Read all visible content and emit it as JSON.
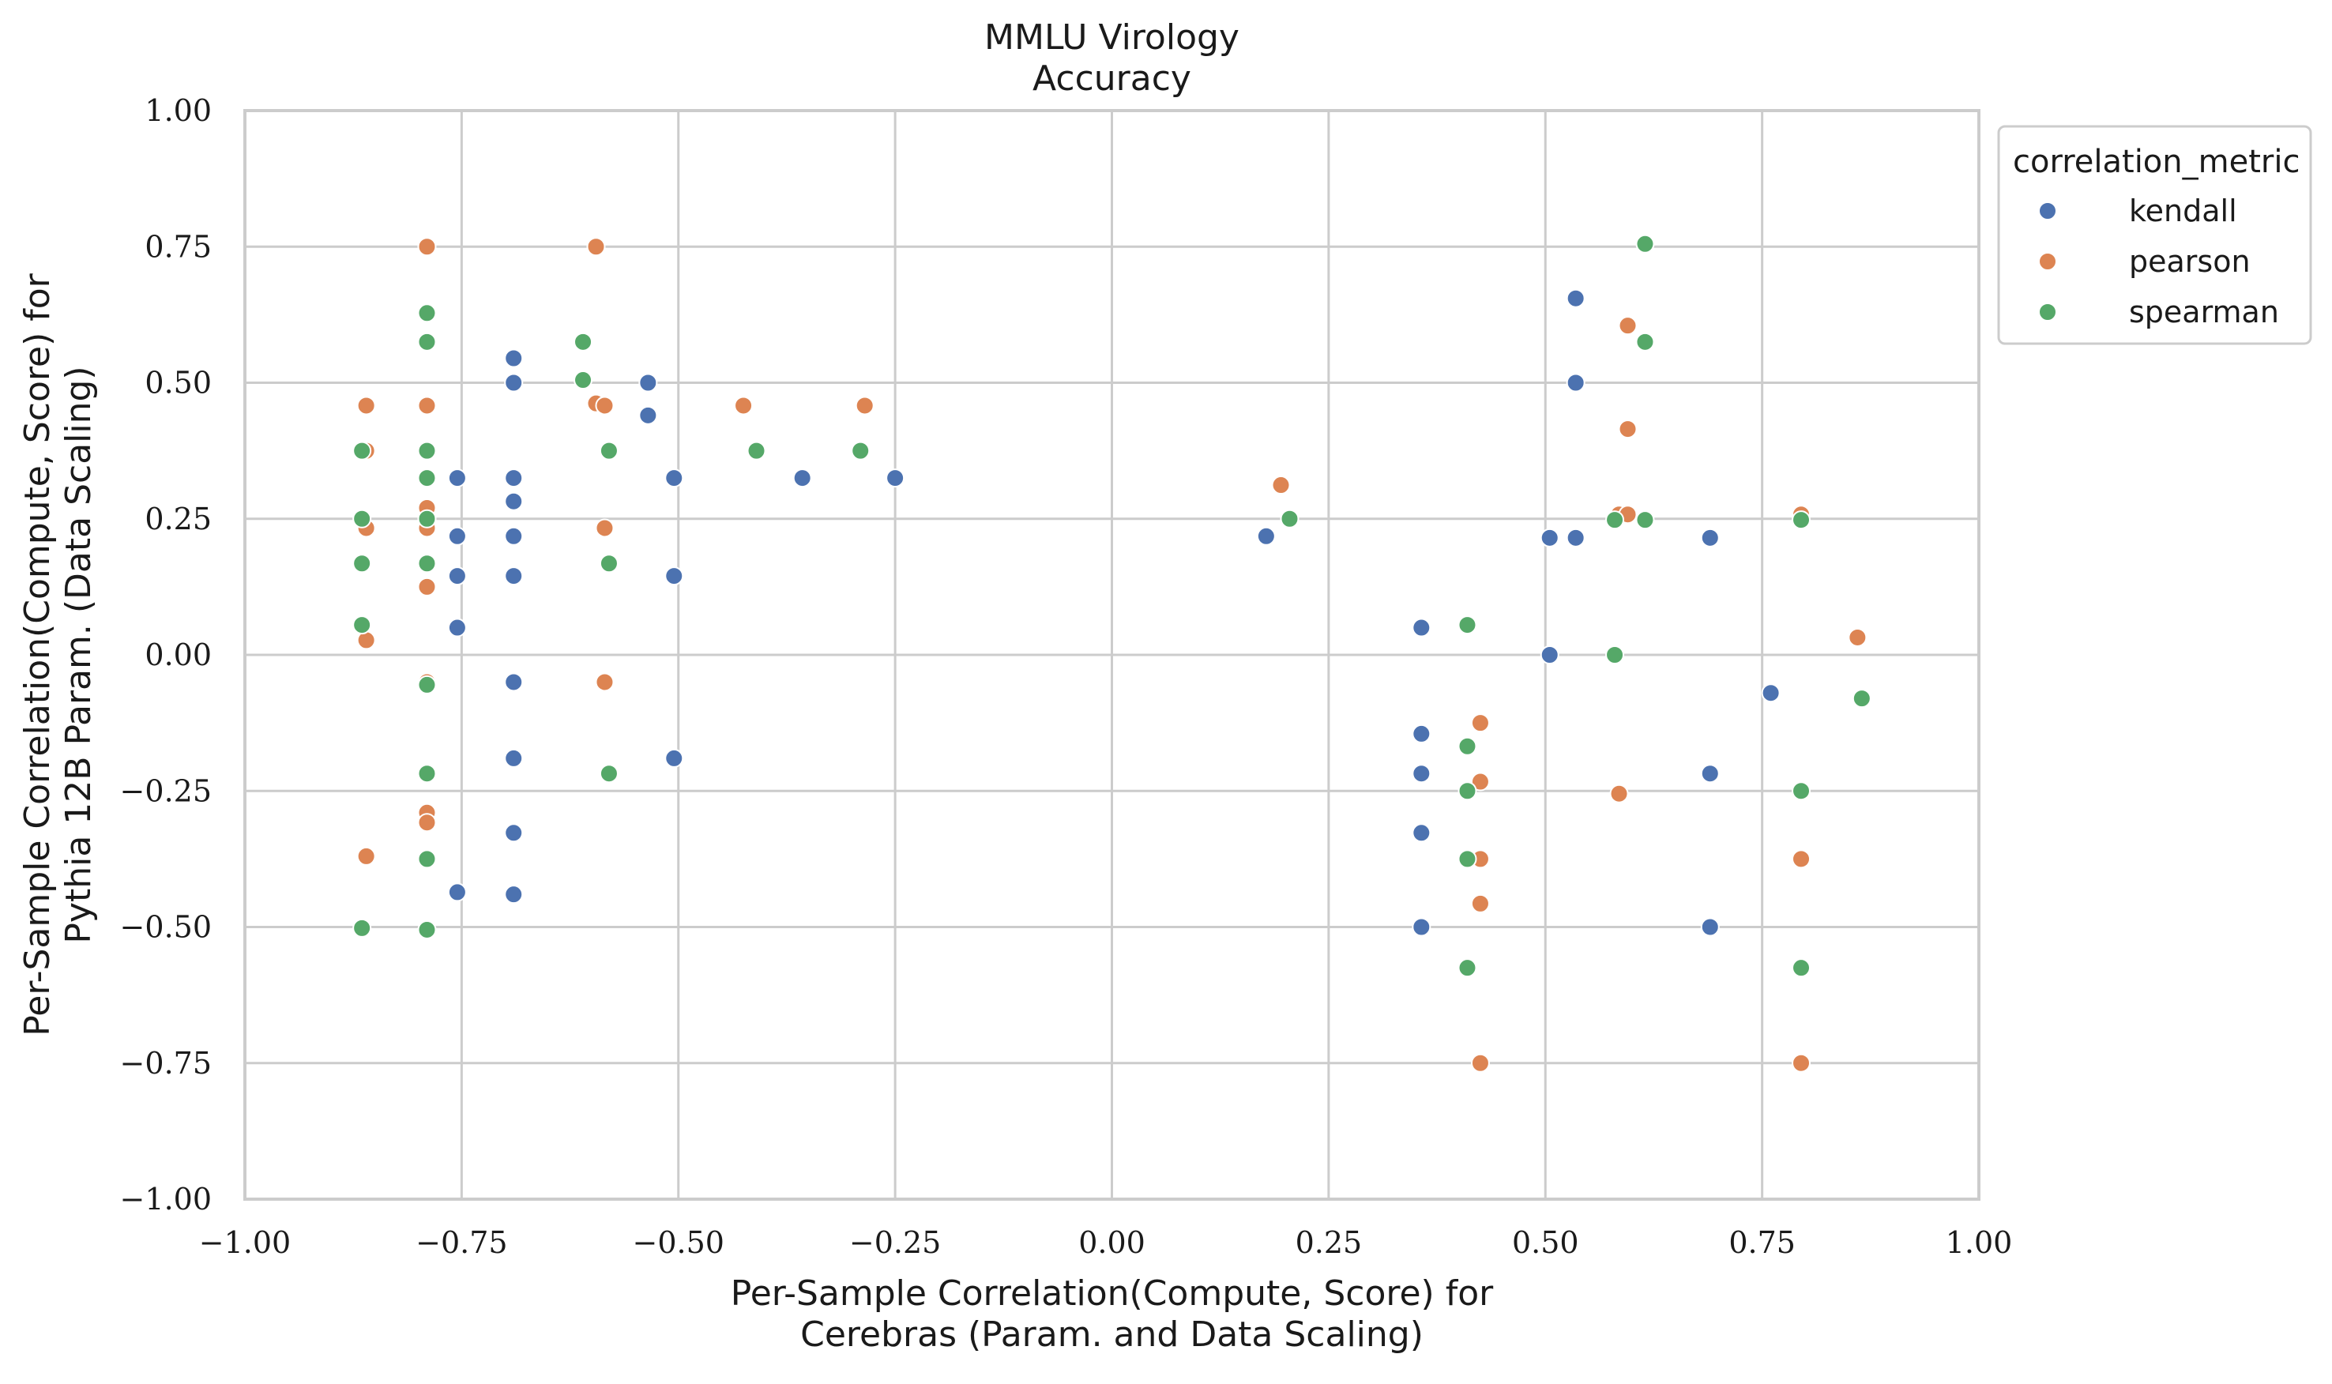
{
  "chart_data": {
    "type": "scatter",
    "title": [
      "MMLU Virology",
      "Accuracy"
    ],
    "xlabel": [
      "Per-Sample Correlation(Compute, Score) for",
      "Cerebras (Param. and Data Scaling)"
    ],
    "ylabel": [
      "Per-Sample Correlation(Compute, Score) for",
      "Pythia 12B Param. (Data Scaling)"
    ],
    "xlim": [
      -1.0,
      1.0
    ],
    "ylim": [
      -1.0,
      1.0
    ],
    "x_ticks": [
      -1.0,
      -0.75,
      -0.5,
      -0.25,
      0.0,
      0.25,
      0.5,
      0.75,
      1.0
    ],
    "y_ticks": [
      -1.0,
      -0.75,
      -0.5,
      -0.25,
      0.0,
      0.25,
      0.5,
      0.75,
      1.0
    ],
    "x_tick_labels": [
      "−1.00",
      "−0.75",
      "−0.50",
      "−0.25",
      "0.00",
      "0.25",
      "0.50",
      "0.75",
      "1.00"
    ],
    "y_tick_labels": [
      "−1.00",
      "−0.75",
      "−0.50",
      "−0.25",
      "0.00",
      "0.25",
      "0.50",
      "0.75",
      "1.00"
    ],
    "grid": true,
    "legend": {
      "title": "correlation_metric",
      "placement": "outside-top-right"
    },
    "series": [
      {
        "name": "kendall",
        "color": "#4c72b0",
        "points": [
          [
            -0.755,
            0.325
          ],
          [
            -0.755,
            0.218
          ],
          [
            -0.755,
            0.145
          ],
          [
            -0.755,
            0.05
          ],
          [
            -0.755,
            -0.436
          ],
          [
            -0.69,
            0.545
          ],
          [
            -0.69,
            0.5
          ],
          [
            -0.69,
            0.325
          ],
          [
            -0.69,
            0.282
          ],
          [
            -0.69,
            0.218
          ],
          [
            -0.69,
            0.145
          ],
          [
            -0.69,
            -0.05
          ],
          [
            -0.69,
            -0.19
          ],
          [
            -0.69,
            -0.327
          ],
          [
            -0.69,
            -0.44
          ],
          [
            -0.535,
            0.5
          ],
          [
            -0.535,
            0.44
          ],
          [
            -0.505,
            0.325
          ],
          [
            -0.505,
            0.145
          ],
          [
            -0.505,
            -0.19
          ],
          [
            -0.357,
            0.325
          ],
          [
            -0.25,
            0.325
          ],
          [
            0.178,
            0.218
          ],
          [
            0.357,
            0.05
          ],
          [
            0.357,
            -0.145
          ],
          [
            0.357,
            -0.218
          ],
          [
            0.357,
            -0.327
          ],
          [
            0.357,
            -0.5
          ],
          [
            0.505,
            0.215
          ],
          [
            0.505,
            0.0
          ],
          [
            0.535,
            0.655
          ],
          [
            0.535,
            0.5
          ],
          [
            0.535,
            0.215
          ],
          [
            0.69,
            0.215
          ],
          [
            0.69,
            -0.218
          ],
          [
            0.69,
            -0.5
          ],
          [
            0.76,
            -0.07
          ]
        ]
      },
      {
        "name": "pearson",
        "color": "#dd8452",
        "points": [
          [
            -0.86,
            0.458
          ],
          [
            -0.86,
            0.375
          ],
          [
            -0.86,
            0.233
          ],
          [
            -0.86,
            0.027
          ],
          [
            -0.86,
            -0.37
          ],
          [
            -0.79,
            0.75
          ],
          [
            -0.79,
            0.458
          ],
          [
            -0.79,
            0.27
          ],
          [
            -0.79,
            0.233
          ],
          [
            -0.79,
            0.125
          ],
          [
            -0.79,
            -0.05
          ],
          [
            -0.79,
            -0.29
          ],
          [
            -0.79,
            -0.308
          ],
          [
            -0.595,
            0.75
          ],
          [
            -0.595,
            0.462
          ],
          [
            -0.585,
            0.458
          ],
          [
            -0.585,
            0.233
          ],
          [
            -0.585,
            -0.05
          ],
          [
            -0.425,
            0.458
          ],
          [
            -0.285,
            0.458
          ],
          [
            0.195,
            0.312
          ],
          [
            0.425,
            -0.125
          ],
          [
            0.425,
            -0.233
          ],
          [
            0.425,
            -0.375
          ],
          [
            0.425,
            -0.457
          ],
          [
            0.425,
            -0.75
          ],
          [
            0.585,
            0.258
          ],
          [
            0.585,
            -0.255
          ],
          [
            0.595,
            0.605
          ],
          [
            0.595,
            0.415
          ],
          [
            0.595,
            0.258
          ],
          [
            0.795,
            0.258
          ],
          [
            0.795,
            -0.375
          ],
          [
            0.795,
            -0.75
          ],
          [
            0.86,
            0.032
          ]
        ]
      },
      {
        "name": "spearman",
        "color": "#55a868",
        "points": [
          [
            -0.865,
            0.375
          ],
          [
            -0.865,
            0.25
          ],
          [
            -0.865,
            0.168
          ],
          [
            -0.865,
            0.055
          ],
          [
            -0.865,
            -0.502
          ],
          [
            -0.79,
            0.628
          ],
          [
            -0.79,
            0.575
          ],
          [
            -0.79,
            0.375
          ],
          [
            -0.79,
            0.325
          ],
          [
            -0.79,
            0.25
          ],
          [
            -0.79,
            0.168
          ],
          [
            -0.79,
            -0.055
          ],
          [
            -0.79,
            -0.218
          ],
          [
            -0.79,
            -0.375
          ],
          [
            -0.79,
            -0.505
          ],
          [
            -0.61,
            0.575
          ],
          [
            -0.61,
            0.505
          ],
          [
            -0.58,
            0.375
          ],
          [
            -0.58,
            0.168
          ],
          [
            -0.58,
            -0.218
          ],
          [
            -0.41,
            0.375
          ],
          [
            -0.29,
            0.375
          ],
          [
            0.205,
            0.25
          ],
          [
            0.41,
            0.055
          ],
          [
            0.41,
            -0.168
          ],
          [
            0.41,
            -0.25
          ],
          [
            0.41,
            -0.375
          ],
          [
            0.41,
            -0.575
          ],
          [
            0.58,
            0.248
          ],
          [
            0.58,
            0.0
          ],
          [
            0.615,
            0.755
          ],
          [
            0.615,
            0.575
          ],
          [
            0.615,
            0.248
          ],
          [
            0.795,
            0.248
          ],
          [
            0.795,
            -0.25
          ],
          [
            0.795,
            -0.575
          ],
          [
            0.865,
            -0.08
          ]
        ]
      }
    ]
  }
}
